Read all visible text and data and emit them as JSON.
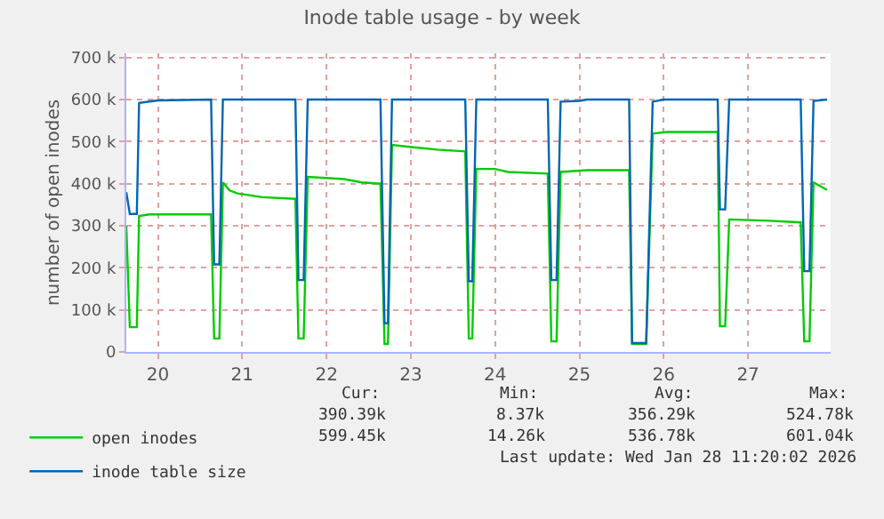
{
  "chart_data": {
    "type": "line",
    "title": "Inode table usage - by week",
    "ylabel": "number of open inodes",
    "xlim": [
      19.625,
      27.98
    ],
    "xticks": [
      {
        "value": 20,
        "label": "20"
      },
      {
        "value": 21,
        "label": "21"
      },
      {
        "value": 22,
        "label": "22"
      },
      {
        "value": 23,
        "label": "23"
      },
      {
        "value": 24,
        "label": "24"
      },
      {
        "value": 25,
        "label": "25"
      },
      {
        "value": 26,
        "label": "26"
      },
      {
        "value": 27,
        "label": "27"
      }
    ],
    "ylim": [
      0,
      710000
    ],
    "yticks": [
      0,
      {
        "value": 100000,
        "label": "100 k"
      },
      {
        "value": 200000,
        "label": "200 k"
      },
      {
        "value": 300000,
        "label": "300 k"
      },
      {
        "value": 400000,
        "label": "400 k"
      },
      {
        "value": 500000,
        "label": "500 k"
      },
      {
        "value": 600000,
        "label": "600 k"
      },
      {
        "value": 700000,
        "label": "700 k"
      }
    ],
    "grid": true,
    "legend": "bottom left",
    "marker": "none",
    "line_style": "solid",
    "series": [
      {
        "name": "open inodes",
        "color": "#00cc00",
        "x": [
          19.625,
          19.667,
          19.75,
          19.777,
          19.9,
          20.631,
          20.667,
          20.729,
          20.771,
          20.85,
          20.944,
          21.235,
          21.631,
          21.667,
          21.729,
          21.777,
          22.208,
          22.417,
          22.64,
          22.688,
          22.729,
          22.777,
          23.006,
          23.319,
          23.646,
          23.688,
          23.729,
          23.777,
          24.0,
          24.152,
          24.625,
          24.667,
          24.729,
          24.777,
          25.09,
          25.59,
          25.625,
          25.792,
          25.869,
          26.042,
          26.64,
          26.667,
          26.729,
          26.777,
          27.243,
          27.625,
          27.667,
          27.729,
          27.777,
          27.938
        ],
        "values": [
          300000,
          59000,
          59000,
          323000,
          327000,
          327000,
          32000,
          32000,
          403000,
          384000,
          377000,
          368000,
          364000,
          32000,
          32000,
          416000,
          411000,
          403000,
          400000,
          19000,
          19000,
          492000,
          487000,
          481000,
          477000,
          32000,
          32000,
          435000,
          435000,
          428000,
          424000,
          25000,
          25000,
          428000,
          432000,
          432000,
          19000,
          19000,
          519000,
          523000,
          523000,
          61000,
          61000,
          315000,
          312000,
          308000,
          25000,
          25000,
          403000,
          385000
        ]
      },
      {
        "name": "inode table size",
        "color": "#0066b3",
        "x": [
          19.625,
          19.667,
          19.75,
          19.777,
          20.0,
          20.631,
          20.667,
          20.729,
          20.771,
          21.631,
          21.667,
          21.729,
          21.777,
          22.64,
          22.688,
          22.729,
          22.777,
          23.646,
          23.688,
          23.729,
          23.777,
          24.625,
          24.667,
          24.729,
          24.777,
          25.0,
          25.09,
          25.59,
          25.625,
          25.792,
          25.869,
          26.0,
          26.64,
          26.667,
          26.729,
          26.777,
          27.625,
          27.667,
          27.729,
          27.777,
          27.938
        ],
        "values": [
          380000,
          328000,
          328000,
          592000,
          598000,
          600000,
          208000,
          208000,
          600000,
          600000,
          171000,
          171000,
          600000,
          600000,
          68000,
          68000,
          600000,
          600000,
          168000,
          168000,
          600000,
          600000,
          171000,
          171000,
          595000,
          597000,
          600000,
          600000,
          21000,
          21000,
          595000,
          600000,
          600000,
          339000,
          339000,
          600000,
          600000,
          192000,
          192000,
          597000,
          600000
        ]
      }
    ],
    "annotations": [
      "Cur:",
      "Min:",
      "Avg:",
      "Max:",
      "390.39k",
      "8.37k",
      "356.29k",
      "524.78k",
      "599.45k",
      "14.26k",
      "536.78k",
      "601.04k",
      "Last update: Wed Jan 28 11:20:02 2026"
    ]
  }
}
